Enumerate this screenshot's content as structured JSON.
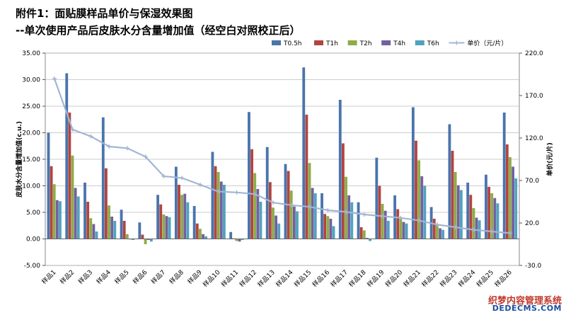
{
  "title_line1": "附件1：面贴膜样品单价与保湿效果图",
  "title_line2": "--单次使用产品后皮肤水分含量增加值（经空白对照校正后）",
  "watermark_line1": "织梦内容管理系统",
  "watermark_line2": "DEDECMS.COM",
  "chart_data": {
    "type": "bar",
    "categories": [
      "样品1",
      "样品2",
      "样品3",
      "样品4",
      "样品5",
      "样品6",
      "样品7",
      "样品8",
      "样品9",
      "样品10",
      "样品11",
      "样品12",
      "样品13",
      "样品14",
      "样品15",
      "样品16",
      "样品17",
      "样品18",
      "样品19",
      "样品20",
      "样品21",
      "样品22",
      "样品23",
      "样品24",
      "样品25",
      "样品26"
    ],
    "ylabel": "皮肤水分含量增加值(c.u.)",
    "y2label": "单价(元/片)",
    "ylim": [
      -5,
      35
    ],
    "yticks": [
      "35.00",
      "30.00",
      "25.00",
      "20.00",
      "15.00",
      "10.00",
      "5.00",
      "0.00",
      "-5.00"
    ],
    "y2lim": [
      -30,
      220
    ],
    "y2ticks": [
      "220.0",
      "170.0",
      "120.0",
      "70.0",
      "20.0",
      "-30.0"
    ],
    "legend_position": "top",
    "series": [
      {
        "name": "T0.5h",
        "color": "#4a74ac",
        "values": [
          20.0,
          31.2,
          10.6,
          22.9,
          5.5,
          3.1,
          8.3,
          13.6,
          6.2,
          16.4,
          1.3,
          23.9,
          17.3,
          14.1,
          32.3,
          8.6,
          26.2,
          6.9,
          15.3,
          8.2,
          24.8,
          6.0,
          21.6,
          10.6,
          12.1,
          23.8
        ]
      },
      {
        "name": "T1h",
        "color": "#b2443f",
        "values": [
          13.7,
          23.8,
          7.0,
          13.3,
          3.4,
          0.8,
          6.5,
          10.2,
          2.9,
          13.7,
          0.1,
          16.9,
          10.7,
          12.8,
          23.4,
          4.7,
          18.0,
          2.2,
          10.0,
          5.6,
          18.5,
          3.8,
          16.6,
          8.3,
          9.8,
          17.8
        ]
      },
      {
        "name": "T2h",
        "color": "#8eac47",
        "values": [
          10.3,
          15.7,
          3.9,
          6.3,
          0.9,
          -1.0,
          4.6,
          8.3,
          1.9,
          12.6,
          -0.4,
          12.4,
          5.9,
          9.1,
          14.3,
          4.3,
          11.7,
          1.6,
          6.6,
          3.9,
          14.8,
          2.6,
          12.6,
          5.8,
          8.6,
          15.4
        ]
      },
      {
        "name": "T4h",
        "color": "#7360a0",
        "values": [
          7.3,
          9.6,
          2.8,
          4.2,
          -0.1,
          -0.2,
          4.3,
          8.5,
          0.9,
          10.8,
          -0.5,
          9.4,
          4.4,
          6.1,
          9.6,
          3.8,
          8.2,
          0.2,
          5.3,
          3.2,
          11.8,
          2.0,
          10.1,
          4.0,
          7.7,
          13.6
        ]
      },
      {
        "name": "T6h",
        "color": "#4fa3bf",
        "values": [
          7.1,
          8.0,
          1.4,
          3.4,
          -0.2,
          -0.5,
          4.1,
          6.9,
          0.5,
          10.2,
          -0.2,
          7.0,
          2.9,
          5.2,
          8.6,
          2.4,
          6.9,
          -0.4,
          3.4,
          2.9,
          10.0,
          1.7,
          9.2,
          3.5,
          6.7,
          11.4
        ]
      }
    ],
    "line_series": {
      "name": "单价（元/片）",
      "color": "#a3b5d4",
      "axis": "right",
      "values": [
        190,
        130,
        122,
        110,
        108,
        98,
        75,
        73,
        65,
        57,
        56,
        54,
        44,
        41,
        39,
        35,
        33,
        30,
        28,
        26,
        23,
        18,
        15,
        12,
        10,
        8
      ]
    }
  }
}
